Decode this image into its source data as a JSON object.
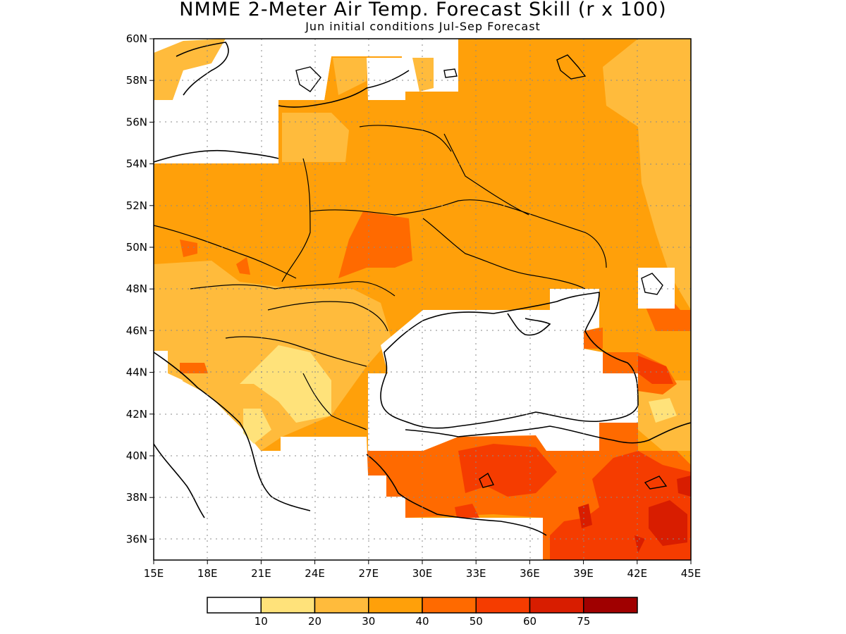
{
  "title": "NMME 2-Meter Air Temp. Forecast Skill (r x 100)",
  "subtitle": "Jun initial conditions  Jul-Sep Forecast",
  "map": {
    "lon_range": [
      15,
      45
    ],
    "lat_range": [
      35,
      60
    ],
    "grid": true,
    "lat_ticks": [
      "60N",
      "58N",
      "56N",
      "54N",
      "52N",
      "50N",
      "48N",
      "46N",
      "44N",
      "42N",
      "40N",
      "38N",
      "36N"
    ],
    "lon_ticks": [
      "15E",
      "18E",
      "21E",
      "24E",
      "27E",
      "30E",
      "33E",
      "36E",
      "39E",
      "42E",
      "45E"
    ]
  },
  "colorbar": {
    "labels": [
      "10",
      "20",
      "30",
      "40",
      "50",
      "60",
      "75"
    ],
    "colors": [
      "#ffffff",
      "#ffe27a",
      "#ffbb3c",
      "#ffa00a",
      "#ff6a00",
      "#f53c00",
      "#d81d00",
      "#a00000"
    ]
  }
}
